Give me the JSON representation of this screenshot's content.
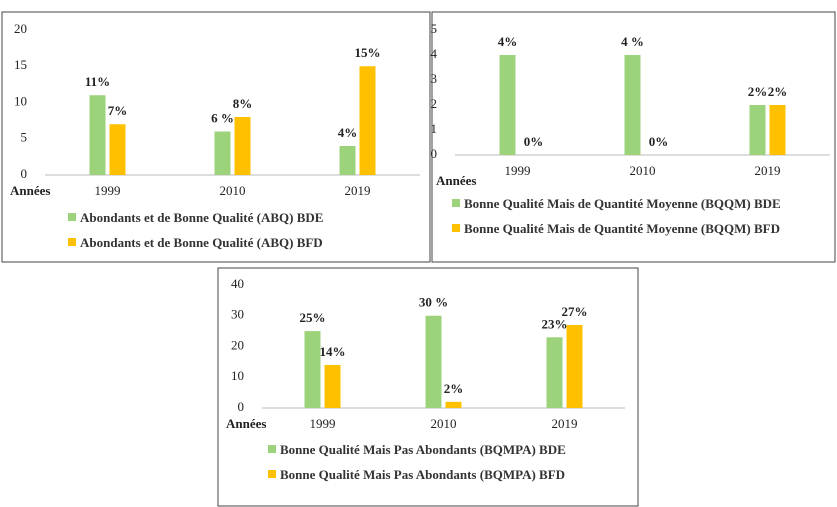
{
  "chart_data": [
    {
      "type": "bar",
      "x_label": "Années",
      "categories": [
        "1999",
        "2010",
        "2019"
      ],
      "ylim": [
        0,
        20
      ],
      "yticks": [
        0,
        5,
        10,
        15,
        20
      ],
      "series": [
        {
          "name": "Abondants et de Bonne Qualité (ABQ) BDE",
          "color": "#9bd27a",
          "values": [
            11,
            6,
            4
          ],
          "value_labels": [
            "11%",
            "6 %",
            "4%"
          ]
        },
        {
          "name": "Abondants et de Bonne Qualité (ABQ) BFD",
          "color": "#ffc000",
          "values": [
            7,
            8,
            15
          ],
          "value_labels": [
            "7%",
            "8%",
            "15%"
          ]
        }
      ]
    },
    {
      "type": "bar",
      "x_label": "Années",
      "categories": [
        "1999",
        "2010",
        "2019"
      ],
      "ylim": [
        0,
        5
      ],
      "yticks": [
        0,
        1,
        2,
        3,
        4,
        5
      ],
      "series": [
        {
          "name": "Bonne Qualité Mais de Quantité Moyenne (BQQM) BDE",
          "color": "#9bd27a",
          "values": [
            4,
            4,
            2
          ],
          "value_labels": [
            "4%",
            "4 %",
            "2%"
          ]
        },
        {
          "name": "Bonne Qualité Mais de Quantité Moyenne (BQQM) BFD",
          "color": "#ffc000",
          "values": [
            0,
            0,
            2
          ],
          "value_labels": [
            "0%",
            "0%",
            "2%"
          ]
        }
      ]
    },
    {
      "type": "bar",
      "x_label": "Années",
      "categories": [
        "1999",
        "2010",
        "2019"
      ],
      "ylim": [
        0,
        40
      ],
      "yticks": [
        0,
        10,
        20,
        30,
        40
      ],
      "series": [
        {
          "name": "Bonne Qualité Mais Pas Abondants (BQMPA) BDE",
          "color": "#9bd27a",
          "values": [
            25,
            30,
            23
          ],
          "value_labels": [
            "25%",
            "30 %",
            "23%"
          ]
        },
        {
          "name": "Bonne Qualité Mais Pas Abondants (BQMPA) BFD",
          "color": "#ffc000",
          "values": [
            14,
            2,
            27
          ],
          "value_labels": [
            "14%",
            "2%",
            "27%"
          ]
        }
      ]
    }
  ]
}
